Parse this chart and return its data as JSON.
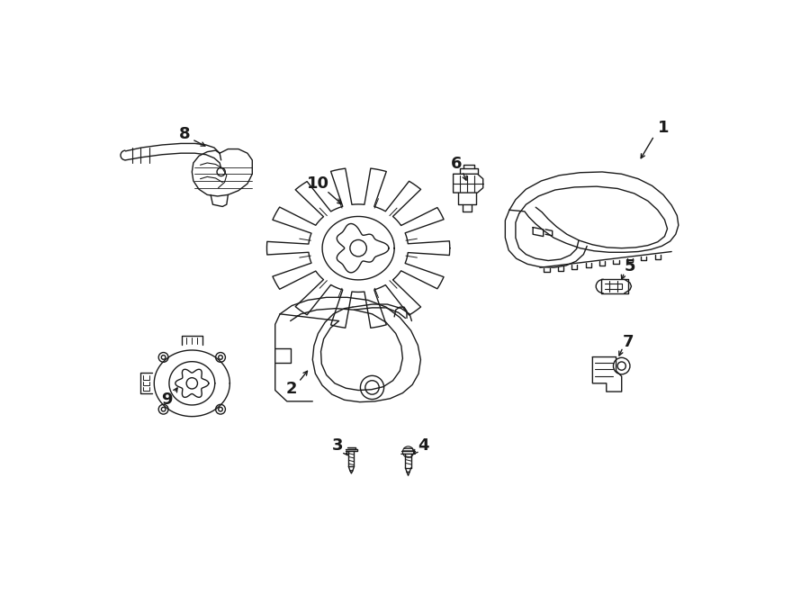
{
  "bg_color": "#ffffff",
  "line_color": "#1a1a1a",
  "lw": 1.0,
  "fig_width": 9.0,
  "fig_height": 6.61,
  "dpi": 100
}
